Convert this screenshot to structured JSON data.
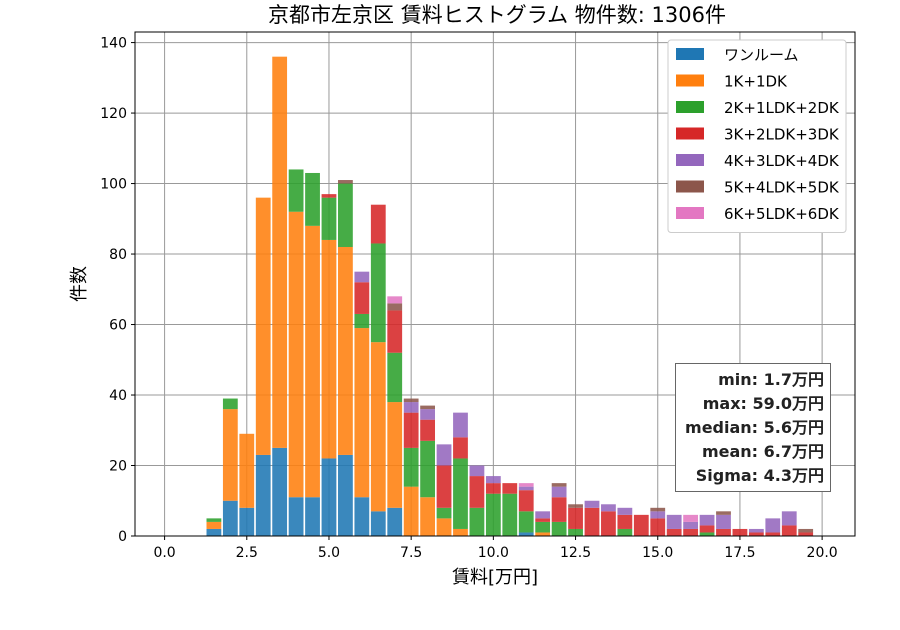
{
  "chart_data": {
    "type": "bar",
    "stacked": true,
    "title": "京都市左京区 賃料ヒストグラム 物件数: 1306件",
    "xlabel": "賃料[万円]",
    "ylabel": "件数",
    "xlim": [
      -0.9,
      21.0
    ],
    "ylim": [
      0,
      143
    ],
    "xticks": [
      "0.0",
      "2.5",
      "5.0",
      "7.5",
      "10.0",
      "12.5",
      "15.0",
      "17.5",
      "20.0"
    ],
    "yticks": [
      "0",
      "20",
      "40",
      "60",
      "80",
      "100",
      "120",
      "140"
    ],
    "grid": true,
    "legend_position": "top-right",
    "bin_width": 0.5,
    "bins": [
      1.5,
      2.0,
      2.5,
      3.0,
      3.5,
      4.0,
      4.5,
      5.0,
      5.5,
      6.0,
      6.5,
      7.0,
      7.5,
      8.0,
      8.5,
      9.0,
      9.5,
      10.0,
      10.5,
      11.0,
      11.5,
      12.0,
      12.5,
      13.0,
      13.5,
      14.0,
      14.5,
      15.0,
      15.5,
      16.0,
      16.5,
      17.0,
      17.5,
      18.0,
      18.5,
      19.0,
      19.5
    ],
    "series": [
      {
        "name": "ワンルーム",
        "color": "#1f77b4",
        "values": [
          2,
          10,
          8,
          23,
          25,
          11,
          11,
          22,
          23,
          11,
          7,
          8,
          0,
          0,
          0,
          0,
          0,
          0,
          0,
          1,
          0,
          0,
          0,
          0,
          0,
          0,
          0,
          0,
          0,
          0,
          0,
          0,
          0,
          0,
          0,
          0,
          0
        ]
      },
      {
        "name": "1K+1DK",
        "color": "#ff7f0e",
        "values": [
          2,
          26,
          21,
          73,
          111,
          81,
          77,
          62,
          59,
          48,
          48,
          30,
          14,
          11,
          5,
          2,
          0,
          0,
          0,
          0,
          1,
          0,
          0,
          0,
          0,
          0,
          0,
          0,
          0,
          0,
          0,
          0,
          0,
          0,
          0,
          0,
          0
        ]
      },
      {
        "name": "2K+1LDK+2DK",
        "color": "#2ca02c",
        "values": [
          1,
          3,
          0,
          0,
          0,
          12,
          15,
          12,
          18,
          4,
          28,
          14,
          11,
          16,
          3,
          20,
          8,
          12,
          12,
          6,
          3,
          4,
          2,
          0,
          0,
          2,
          0,
          0,
          0,
          0,
          1,
          0,
          0,
          0,
          0,
          0,
          0
        ]
      },
      {
        "name": "3K+2LDK+3DK",
        "color": "#d62728",
        "values": [
          0,
          0,
          0,
          0,
          0,
          0,
          0,
          1,
          0,
          9,
          11,
          12,
          10,
          6,
          12,
          6,
          9,
          3,
          3,
          6,
          1,
          7,
          6,
          8,
          7,
          4,
          6,
          5,
          2,
          2,
          2,
          2,
          2,
          1,
          1,
          3,
          1
        ]
      },
      {
        "name": "4K+3LDK+4DK",
        "color": "#9467bd",
        "values": [
          0,
          0,
          0,
          0,
          0,
          0,
          0,
          0,
          0,
          3,
          0,
          0,
          3,
          3,
          6,
          7,
          3,
          2,
          0,
          1,
          2,
          3,
          0,
          2,
          2,
          2,
          0,
          2,
          4,
          2,
          3,
          4,
          0,
          1,
          4,
          4,
          0
        ]
      },
      {
        "name": "5K+4LDK+5DK",
        "color": "#8c564b",
        "values": [
          0,
          0,
          0,
          0,
          0,
          0,
          0,
          0,
          1,
          0,
          0,
          2,
          1,
          1,
          0,
          0,
          0,
          0,
          0,
          0,
          0,
          1,
          1,
          0,
          0,
          0,
          0,
          1,
          0,
          0,
          0,
          1,
          0,
          0,
          0,
          0,
          1
        ]
      },
      {
        "name": "6K+5LDK+6DK",
        "color": "#e377c2",
        "values": [
          0,
          0,
          0,
          0,
          0,
          0,
          0,
          0,
          0,
          0,
          0,
          2,
          0,
          0,
          0,
          0,
          0,
          0,
          0,
          1,
          0,
          0,
          0,
          0,
          0,
          0,
          0,
          0,
          0,
          2,
          0,
          0,
          0,
          0,
          0,
          0,
          0
        ]
      }
    ]
  },
  "stats": {
    "min": "min: 1.7万円",
    "max": "max: 59.0万円",
    "median": "median: 5.6万円",
    "mean": "mean: 6.7万円",
    "sigma": "Sigma: 4.3万円"
  }
}
